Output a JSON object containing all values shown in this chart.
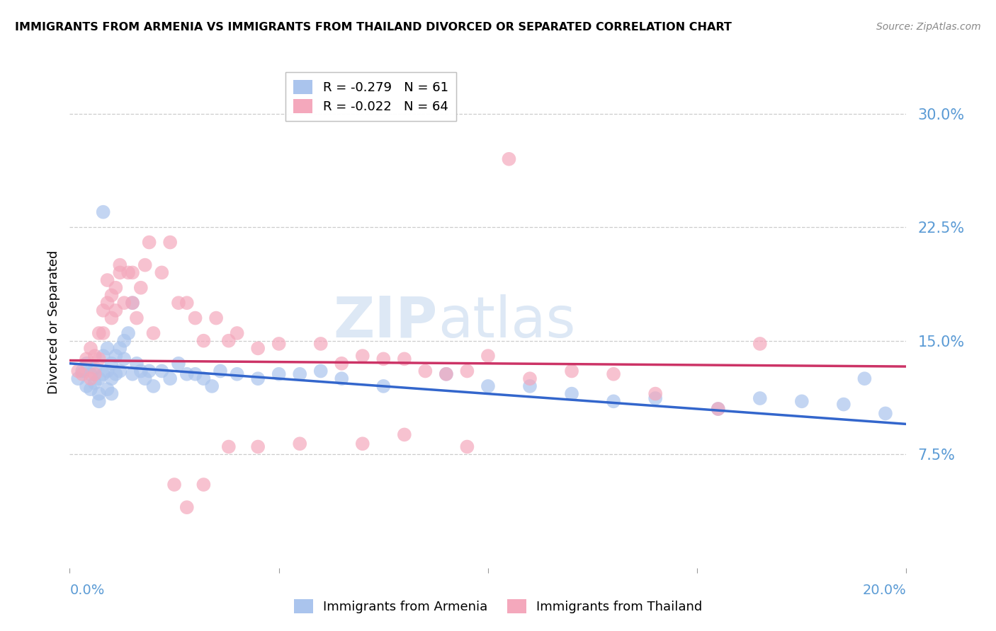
{
  "title": "IMMIGRANTS FROM ARMENIA VS IMMIGRANTS FROM THAILAND DIVORCED OR SEPARATED CORRELATION CHART",
  "source": "Source: ZipAtlas.com",
  "ylabel": "Divorced or Separated",
  "yticks": [
    0.075,
    0.15,
    0.225,
    0.3
  ],
  "ytick_labels": [
    "7.5%",
    "15.0%",
    "22.5%",
    "30.0%"
  ],
  "xlim": [
    0.0,
    0.2
  ],
  "ylim": [
    0.0,
    0.325
  ],
  "armenia_color": "#aac4ed",
  "thailand_color": "#f4a8bc",
  "armenia_line_color": "#3366cc",
  "thailand_line_color": "#cc3366",
  "legend_armenia_R": "-0.279",
  "legend_armenia_N": "61",
  "legend_thailand_R": "-0.022",
  "legend_thailand_N": "64",
  "watermark_zip": "ZIP",
  "watermark_atlas": "atlas",
  "background_color": "#ffffff",
  "grid_color": "#cccccc",
  "tick_color": "#5b9bd5",
  "armenia_x": [
    0.002,
    0.003,
    0.004,
    0.004,
    0.005,
    0.005,
    0.006,
    0.006,
    0.007,
    0.007,
    0.007,
    0.008,
    0.008,
    0.009,
    0.009,
    0.009,
    0.01,
    0.01,
    0.01,
    0.011,
    0.011,
    0.012,
    0.012,
    0.013,
    0.013,
    0.014,
    0.015,
    0.015,
    0.016,
    0.017,
    0.018,
    0.019,
    0.02,
    0.022,
    0.024,
    0.026,
    0.028,
    0.03,
    0.032,
    0.034,
    0.036,
    0.04,
    0.045,
    0.05,
    0.055,
    0.06,
    0.065,
    0.075,
    0.09,
    0.1,
    0.11,
    0.12,
    0.13,
    0.14,
    0.155,
    0.165,
    0.175,
    0.185,
    0.19,
    0.195,
    0.008
  ],
  "armenia_y": [
    0.125,
    0.13,
    0.135,
    0.12,
    0.128,
    0.118,
    0.132,
    0.122,
    0.125,
    0.115,
    0.11,
    0.14,
    0.128,
    0.145,
    0.13,
    0.118,
    0.135,
    0.125,
    0.115,
    0.14,
    0.128,
    0.145,
    0.13,
    0.15,
    0.138,
    0.155,
    0.175,
    0.128,
    0.135,
    0.13,
    0.125,
    0.13,
    0.12,
    0.13,
    0.125,
    0.135,
    0.128,
    0.128,
    0.125,
    0.12,
    0.13,
    0.128,
    0.125,
    0.128,
    0.128,
    0.13,
    0.125,
    0.12,
    0.128,
    0.12,
    0.12,
    0.115,
    0.11,
    0.112,
    0.105,
    0.112,
    0.11,
    0.108,
    0.125,
    0.102,
    0.235
  ],
  "thailand_x": [
    0.002,
    0.003,
    0.004,
    0.005,
    0.005,
    0.006,
    0.006,
    0.007,
    0.007,
    0.008,
    0.008,
    0.009,
    0.009,
    0.01,
    0.01,
    0.011,
    0.011,
    0.012,
    0.012,
    0.013,
    0.014,
    0.015,
    0.015,
    0.016,
    0.017,
    0.018,
    0.019,
    0.02,
    0.022,
    0.024,
    0.026,
    0.028,
    0.03,
    0.032,
    0.035,
    0.038,
    0.04,
    0.045,
    0.05,
    0.06,
    0.065,
    0.07,
    0.075,
    0.08,
    0.085,
    0.09,
    0.095,
    0.1,
    0.11,
    0.12,
    0.13,
    0.14,
    0.155,
    0.165,
    0.025,
    0.028,
    0.032,
    0.038,
    0.045,
    0.055,
    0.07,
    0.08,
    0.095,
    0.105
  ],
  "thailand_y": [
    0.13,
    0.128,
    0.138,
    0.145,
    0.125,
    0.14,
    0.128,
    0.155,
    0.138,
    0.17,
    0.155,
    0.175,
    0.19,
    0.18,
    0.165,
    0.185,
    0.17,
    0.195,
    0.2,
    0.175,
    0.195,
    0.195,
    0.175,
    0.165,
    0.185,
    0.2,
    0.215,
    0.155,
    0.195,
    0.215,
    0.175,
    0.175,
    0.165,
    0.15,
    0.165,
    0.15,
    0.155,
    0.145,
    0.148,
    0.148,
    0.135,
    0.14,
    0.138,
    0.138,
    0.13,
    0.128,
    0.13,
    0.14,
    0.125,
    0.13,
    0.128,
    0.115,
    0.105,
    0.148,
    0.055,
    0.04,
    0.055,
    0.08,
    0.08,
    0.082,
    0.082,
    0.088,
    0.08,
    0.27
  ],
  "armenia_trend_x": [
    0.0,
    0.2
  ],
  "armenia_trend_y": [
    0.135,
    0.095
  ],
  "thailand_trend_x": [
    0.0,
    0.2
  ],
  "thailand_trend_y": [
    0.137,
    0.133
  ]
}
